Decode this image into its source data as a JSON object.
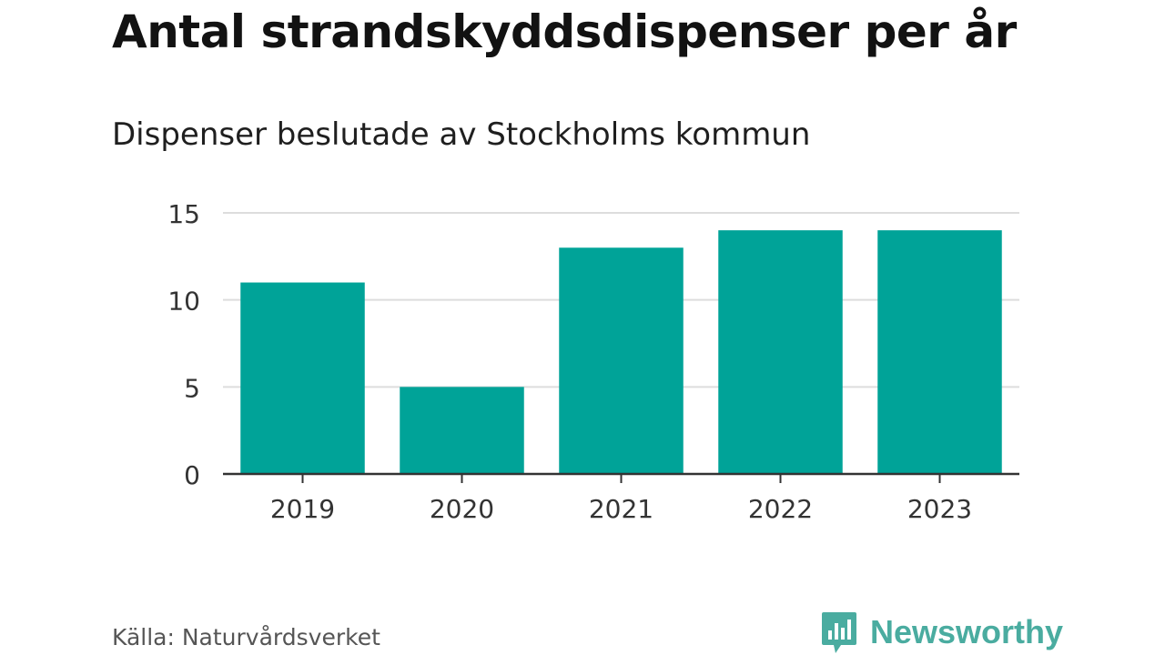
{
  "chart_data": {
    "type": "bar",
    "title": "Antal strandskyddsdispenser per år",
    "subtitle": "Dispenser beslutade av Stockholms kommun",
    "categories": [
      "2019",
      "2020",
      "2021",
      "2022",
      "2023"
    ],
    "values": [
      11,
      5,
      13,
      14,
      14
    ],
    "yticks": [
      "0",
      "5",
      "10",
      "15"
    ],
    "ylim": [
      0,
      15
    ],
    "xlabel": "",
    "ylabel": "",
    "grid": true,
    "bar_color": "#00a398"
  },
  "source": "Källa: Naturvårdsverket",
  "brand": {
    "name": "Newsworthy",
    "color": "#4aaca0",
    "icon": "bar-chart-speech-bubble-icon"
  }
}
